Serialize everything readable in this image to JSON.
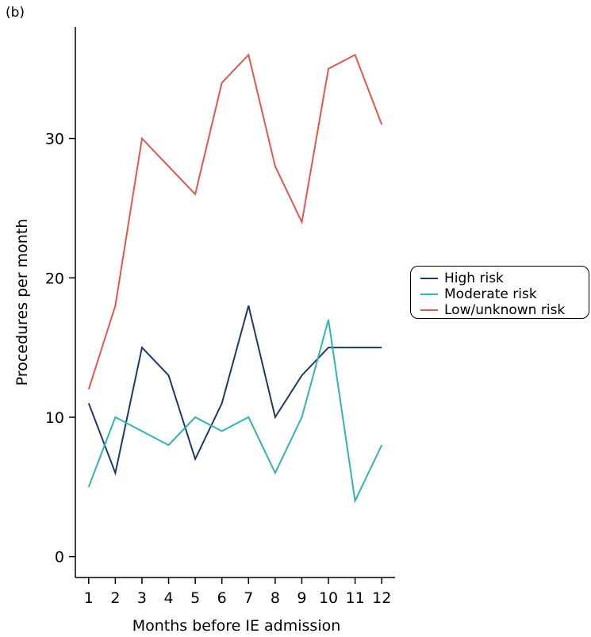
{
  "panel_label": "(b)",
  "chart_data": {
    "type": "line",
    "title": "",
    "xlabel": "Months before IE admission",
    "ylabel": "Procedures per month",
    "x": [
      1,
      2,
      3,
      4,
      5,
      6,
      7,
      8,
      9,
      10,
      11,
      12
    ],
    "xticks": [
      "1",
      "2",
      "3",
      "4",
      "5",
      "6",
      "7",
      "8",
      "9",
      "10",
      "11",
      "12"
    ],
    "yticks": [
      0,
      10,
      20,
      30
    ],
    "ylim": [
      -1.5,
      38
    ],
    "xlim": [
      0.5,
      12.5
    ],
    "grid": false,
    "legend_position": "right",
    "series": [
      {
        "name": "High risk",
        "color": "#1b3a6b",
        "values": [
          11,
          6,
          15,
          13,
          7,
          11,
          18,
          10,
          13,
          15,
          15,
          15
        ]
      },
      {
        "name": "Moderate risk",
        "color": "#2fb5b5",
        "values": [
          5,
          10,
          9,
          8,
          10,
          9,
          10,
          6,
          10,
          17,
          4,
          8
        ]
      },
      {
        "name": "Low/unknown risk",
        "color": "#e8564a",
        "values": [
          12,
          18,
          30,
          28,
          26,
          34,
          36,
          28,
          24,
          35,
          36,
          31
        ]
      }
    ]
  }
}
